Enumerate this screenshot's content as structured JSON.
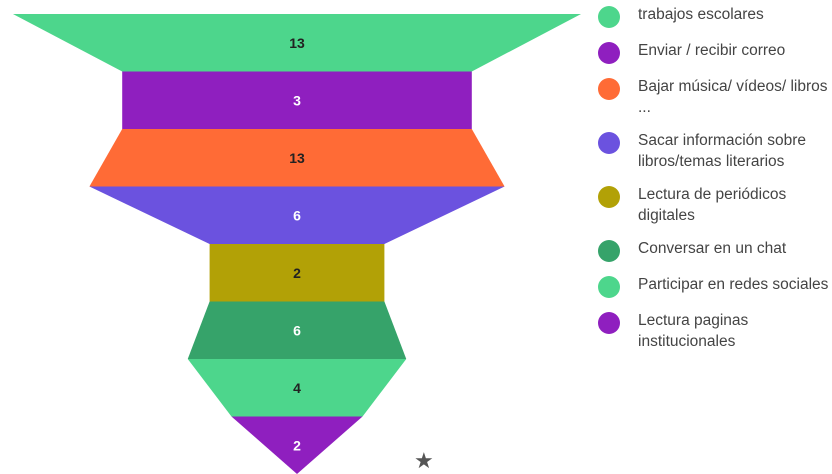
{
  "chart_data": {
    "type": "funnel",
    "title": "",
    "series": [
      {
        "label": "trabajos escolares",
        "value": 13,
        "color": "#4dd68c",
        "label_color": "#222222"
      },
      {
        "label": "Enviar / recibir correo",
        "value": 3,
        "color": "#8f1fbf",
        "label_color": "#ffffff"
      },
      {
        "label": "Bajar música/ vídeos/ libros ...",
        "value": 13,
        "color": "#ff6b36",
        "label_color": "#222222"
      },
      {
        "label": "Sacar información sobre libros/temas literarios",
        "value": 6,
        "color": "#6b52df",
        "label_color": "#ffffff"
      },
      {
        "label": "Lectura de periódicos digitales",
        "value": 2,
        "color": "#b2a106",
        "label_color": "#222222"
      },
      {
        "label": "Conversar en un chat",
        "value": 6,
        "color": "#36a36a",
        "label_color": "#ffffff"
      },
      {
        "label": "Participar en redes sociales",
        "value": 4,
        "color": "#4dd68c",
        "label_color": "#222222"
      },
      {
        "label": "Lectura paginas institucionales",
        "value": 2,
        "color": "#8f1fbf",
        "label_color": "#ffffff"
      }
    ],
    "legend_position": "right"
  },
  "decoration": {
    "star_icon": "★"
  }
}
